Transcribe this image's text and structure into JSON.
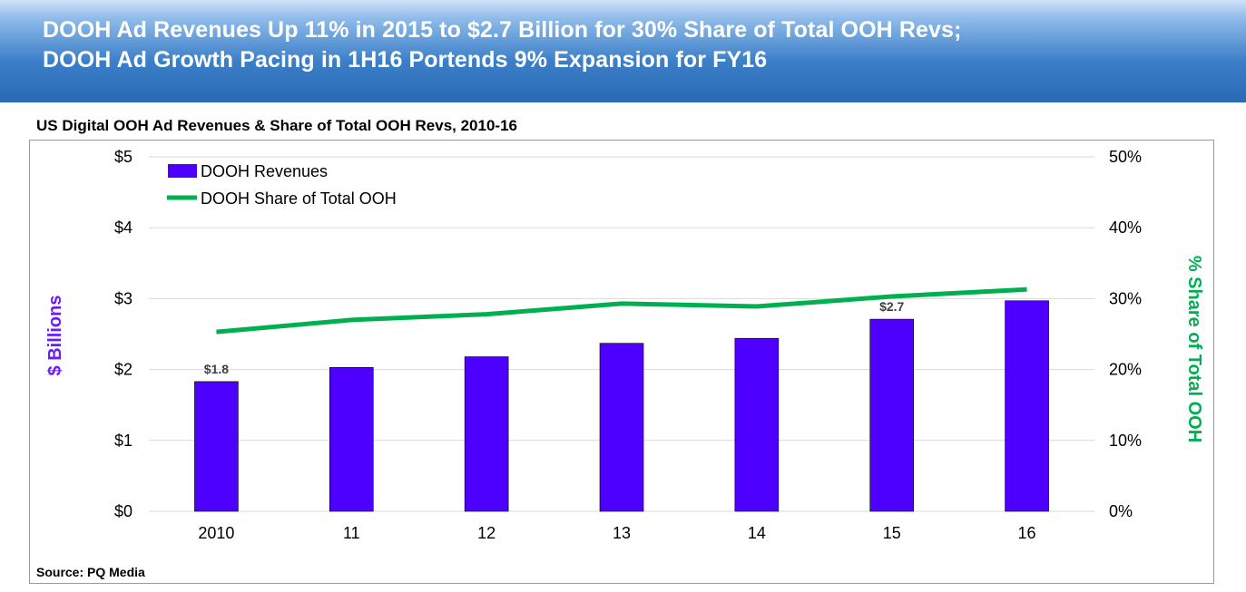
{
  "header": {
    "title_line1": "DOOH Ad Revenues Up 11% in 2015 to $2.7 Billion for 30% Share of Total OOH Revs;",
    "title_line2": "DOOH Ad Growth Pacing in 1H16 Portends 9% Expansion for FY16"
  },
  "source": "Source: PQ Media",
  "colors": {
    "bar": "#4d00ff",
    "line": "#00b050",
    "left_axis_label": "#6a1bff",
    "right_axis_label": "#00b050"
  },
  "chart_data": {
    "type": "bar",
    "title": "US Digital OOH Ad Revenues & Share of Total OOH Revs, 2010-16",
    "categories": [
      "2010",
      "11",
      "12",
      "13",
      "14",
      "15",
      "16"
    ],
    "series": [
      {
        "name": "DOOH Revenues",
        "type": "bar",
        "axis": "left",
        "values": [
          1.83,
          2.03,
          2.18,
          2.37,
          2.44,
          2.71,
          2.97
        ]
      },
      {
        "name": "DOOH Share of Total OOH",
        "type": "line",
        "axis": "right",
        "values": [
          25.3,
          27.0,
          27.8,
          29.3,
          28.9,
          30.3,
          31.3
        ]
      }
    ],
    "data_labels": [
      {
        "category": "2010",
        "text": "$1.8"
      },
      {
        "category": "15",
        "text": "$2.7"
      }
    ],
    "ylabel": "$ Billions",
    "ylabel_right": "% Share of Total OOH",
    "ylim": [
      0,
      5
    ],
    "ylim_right": [
      0,
      50
    ],
    "yticks": [
      "$0",
      "$1",
      "$2",
      "$3",
      "$4",
      "$5"
    ],
    "yticks_right": [
      "0%",
      "10%",
      "20%",
      "30%",
      "40%",
      "50%"
    ],
    "grid": true,
    "legend": "top-left"
  }
}
